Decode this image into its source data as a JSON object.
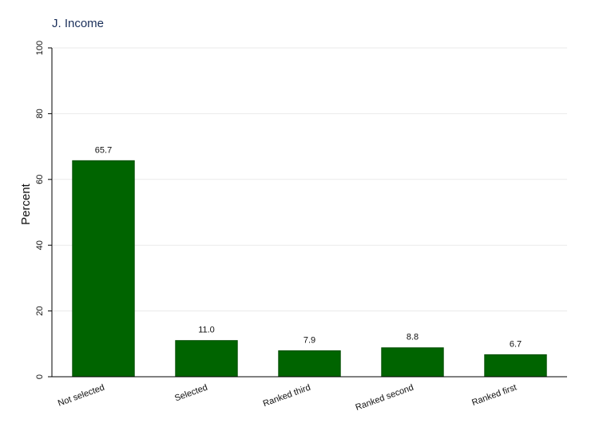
{
  "chart_data": {
    "type": "bar",
    "title": "J. Income",
    "xlabel": "",
    "ylabel": "Percent",
    "categories": [
      "Not selected",
      "Selected",
      "Ranked third",
      "Ranked second",
      "Ranked first"
    ],
    "values": [
      65.7,
      11.0,
      7.9,
      8.8,
      6.7
    ],
    "data_labels": [
      "65.7",
      "11.0",
      "7.9",
      "8.8",
      "6.7"
    ],
    "ylim": [
      0,
      100
    ],
    "yticks": [
      0,
      20,
      40,
      60,
      80,
      100
    ],
    "ytick_labels": [
      "0",
      "20",
      "40",
      "60",
      "80",
      "100"
    ],
    "grid": true,
    "legend": "none",
    "colors": {
      "bar": "#006400",
      "bar_border": "#004d00",
      "grid": "#eaeaea",
      "axis": "#000000",
      "title": "#1a2f5a"
    }
  }
}
